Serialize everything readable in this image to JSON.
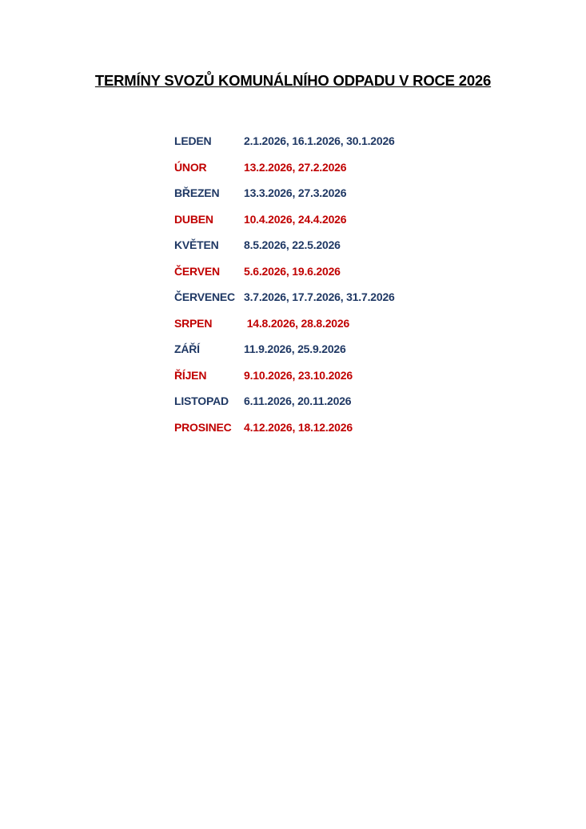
{
  "title": "TERMÍNY SVOZŮ KOMUNÁLNÍHO ODPADU V ROCE 2026",
  "colors": {
    "blue": "#1f3864",
    "red": "#c00000"
  },
  "schedule": [
    {
      "month": "LEDEN",
      "dates": "2.1.2026, 16.1.2026, 30.1.2026",
      "color": "blue"
    },
    {
      "month": "ÚNOR",
      "dates": "13.2.2026, 27.2.2026",
      "color": "red"
    },
    {
      "month": "BŘEZEN",
      "dates": "13.3.2026, 27.3.2026",
      "color": "blue"
    },
    {
      "month": "DUBEN",
      "dates": "10.4.2026, 24.4.2026",
      "color": "red"
    },
    {
      "month": "KVĚTEN",
      "dates": "8.5.2026, 22.5.2026",
      "color": "blue"
    },
    {
      "month": "ČERVEN",
      "dates": "5.6.2026, 19.6.2026",
      "color": "red"
    },
    {
      "month": "ČERVENEC",
      "dates": "3.7.2026, 17.7.2026, 31.7.2026",
      "color": "blue"
    },
    {
      "month": "SRPEN",
      "dates": " 14.8.2026, 28.8.2026",
      "color": "red"
    },
    {
      "month": "ZÁŘÍ",
      "dates": "11.9.2026, 25.9.2026",
      "color": "blue"
    },
    {
      "month": "ŘÍJEN",
      "dates": "9.10.2026, 23.10.2026",
      "color": "red"
    },
    {
      "month": "LISTOPAD",
      "dates": "6.11.2026, 20.11.2026",
      "color": "blue"
    },
    {
      "month": "PROSINEC",
      "dates": "4.12.2026, 18.12.2026",
      "color": "red"
    }
  ]
}
